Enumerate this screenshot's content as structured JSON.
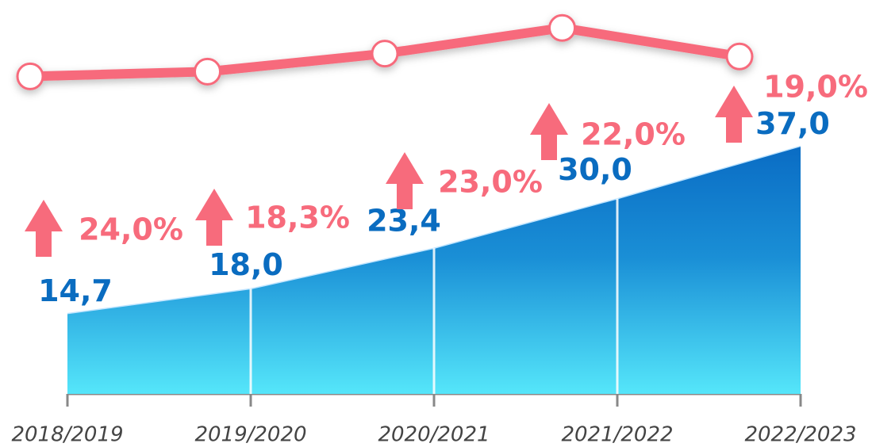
{
  "chart_data": {
    "type": "area",
    "categories": [
      "2018/2019",
      "2019/2020",
      "2020/2021",
      "2021/2022",
      "2022/2023"
    ],
    "series": [
      {
        "values": [
          14.7,
          18.0,
          23.4,
          30.0,
          37.0
        ],
        "value_labels": [
          "14,7",
          "18,0",
          "23,4",
          "30,0",
          "37,0"
        ],
        "color": "#0a6fc4"
      },
      {
        "values": [
          28,
          33,
          52,
          79,
          49
        ],
        "color": "#f76b7c",
        "axis": "y2"
      }
    ],
    "growth": {
      "values": [
        24.0,
        18.3,
        23.0,
        22.0,
        19.0
      ],
      "value_labels": [
        "24,0%",
        "18,3%",
        "23,0%",
        "22,0%",
        "19,0%"
      ],
      "color": "#f76b7c"
    },
    "ylim": [
      4,
      40
    ],
    "y2lim": [
      0,
      100
    ]
  }
}
